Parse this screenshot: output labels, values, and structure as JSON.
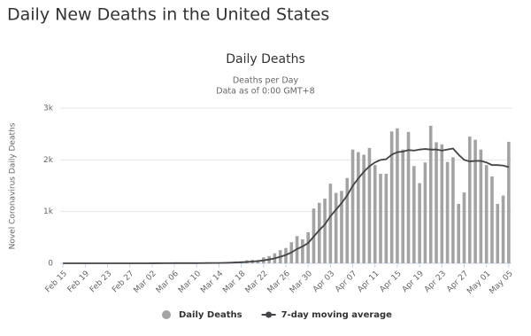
{
  "page_title": "Daily New Deaths in the United States",
  "chart_data": {
    "type": "bar",
    "title": "Daily Deaths",
    "subtitle": [
      "Deaths per Day",
      "Data as of 0:00 GMT+8"
    ],
    "y_label": "Novel Coronavirus Daily Deaths",
    "categories": [
      "Feb 15",
      null,
      null,
      null,
      "Feb 19",
      null,
      null,
      null,
      "Feb 23",
      null,
      null,
      null,
      "Feb 27",
      null,
      null,
      null,
      "Mar 02",
      null,
      null,
      null,
      "Mar 06",
      null,
      null,
      null,
      "Mar 10",
      null,
      null,
      null,
      "Mar 14",
      null,
      null,
      null,
      "Mar 18",
      null,
      null,
      null,
      "Mar 22",
      null,
      null,
      null,
      "Mar 26",
      null,
      null,
      null,
      "Mar 30",
      null,
      null,
      null,
      "Apr 03",
      null,
      null,
      null,
      "Apr 07",
      null,
      null,
      null,
      "Apr 11",
      null,
      null,
      null,
      "Apr 15",
      null,
      null,
      null,
      "Apr 19",
      null,
      null,
      null,
      "Apr 23",
      null,
      null,
      null,
      "Apr 27",
      null,
      null,
      null,
      "May 01",
      null,
      null,
      null,
      "May 05"
    ],
    "series": [
      {
        "name": "Daily Deaths",
        "type": "bar",
        "color": "#a3a3a3",
        "values": [
          0,
          0,
          0,
          0,
          0,
          0,
          0,
          0,
          0,
          0,
          0,
          0,
          0,
          0,
          1,
          1,
          5,
          1,
          4,
          1,
          2,
          3,
          4,
          4,
          5,
          8,
          7,
          10,
          10,
          18,
          23,
          34,
          39,
          59,
          66,
          64,
          114,
          140,
          193,
          254,
          296,
          408,
          526,
          463,
          602,
          1060,
          1170,
          1250,
          1540,
          1360,
          1400,
          1650,
          2200,
          2150,
          2100,
          2230,
          1900,
          1730,
          1730,
          2550,
          2610,
          2200,
          2540,
          1880,
          1550,
          1950,
          2660,
          2340,
          2300,
          1960,
          2050,
          1150,
          1370,
          2450,
          2390,
          2200,
          1900,
          1680,
          1150,
          1310,
          2350
        ]
      },
      {
        "name": "7-day moving average",
        "type": "line",
        "color": "#434348",
        "values": [
          0,
          0,
          0,
          0,
          0,
          0,
          0,
          0,
          0,
          0,
          0,
          0,
          0,
          0,
          0,
          0,
          1,
          1,
          2,
          2,
          3,
          3,
          3,
          3,
          3,
          4,
          5,
          6,
          7,
          9,
          12,
          16,
          20,
          26,
          34,
          43,
          57,
          74,
          96,
          127,
          161,
          210,
          276,
          326,
          392,
          516,
          640,
          751,
          911,
          1037,
          1164,
          1312,
          1498,
          1640,
          1772,
          1876,
          1952,
          1999,
          2013,
          2100,
          2150,
          2160,
          2190,
          2180,
          2200,
          2210,
          2200,
          2200,
          2180,
          2200,
          2220,
          2100,
          2000,
          1970,
          1980,
          1980,
          1950,
          1900,
          1900,
          1890,
          1860
        ]
      }
    ],
    "ylim": [
      0,
      3000
    ],
    "yticks": [
      0,
      {
        "value": 1000,
        "label": "1k"
      },
      {
        "value": 2000,
        "label": "2k"
      },
      {
        "value": 3000,
        "label": "3k"
      }
    ],
    "grid": true,
    "legend": "bottom"
  }
}
